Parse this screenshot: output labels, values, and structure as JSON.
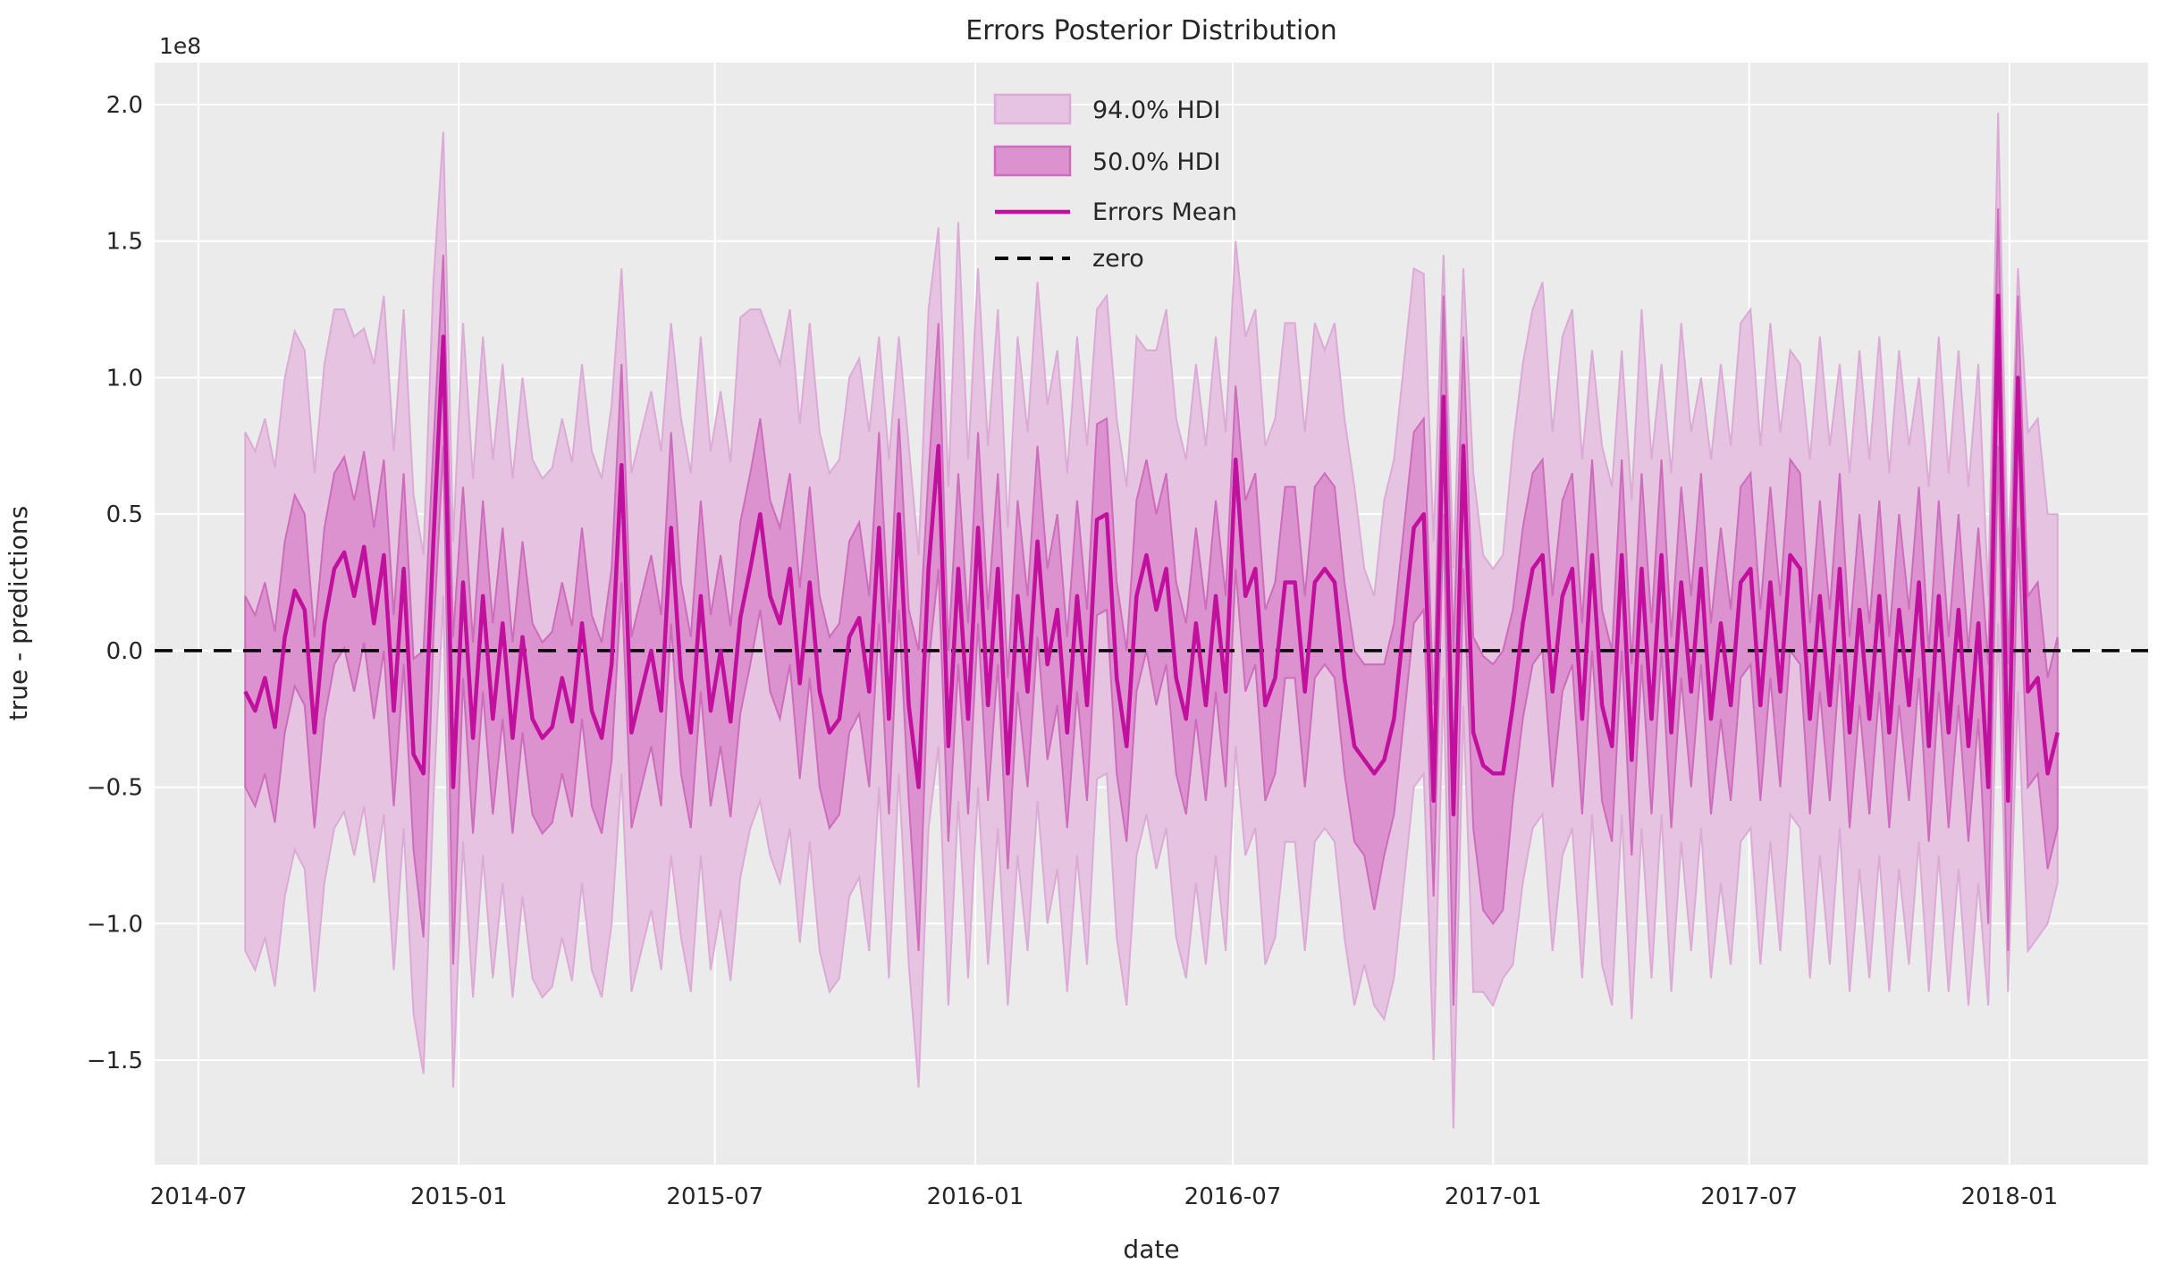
{
  "chart_data": {
    "type": "line",
    "title": "Errors Posterior Distribution",
    "xlabel": "date",
    "ylabel": "true - predictions",
    "y_offset_label": "1e8",
    "y_unit": "values are in units of 1e8",
    "ylim": [
      -1.883,
      2.154
    ],
    "grid": true,
    "legend_position": "upper center",
    "legend": {
      "hdi94_label": "94.0% HDI",
      "hdi50_label": "50.0% HDI",
      "mean_label": "Errors Mean",
      "zero_label": "zero"
    },
    "colors": {
      "hdi94_fill": "#e6c3e0",
      "hdi94_edge": "#dcaad6",
      "hdi50_fill": "#dc92cf",
      "hdi50_edge": "#cd6cbc",
      "mean_line": "#c0109d",
      "zero_line": "#000000",
      "axes_bg": "#ebebeb",
      "grid": "#ffffff",
      "text": "#262626"
    },
    "y_ticks": [
      2.0,
      1.5,
      1.0,
      0.5,
      0.0,
      -0.5,
      -1.0,
      -1.5
    ],
    "x_ticks": [
      {
        "label": "2014-07",
        "date": "2014-07-01"
      },
      {
        "label": "2015-01",
        "date": "2015-01-01"
      },
      {
        "label": "2015-07",
        "date": "2015-07-01"
      },
      {
        "label": "2016-01",
        "date": "2016-01-01"
      },
      {
        "label": "2016-07",
        "date": "2016-07-01"
      },
      {
        "label": "2017-01",
        "date": "2017-01-01"
      },
      {
        "label": "2017-07",
        "date": "2017-07-01"
      },
      {
        "label": "2018-01",
        "date": "2018-01-01"
      }
    ],
    "x_start": "2014-08-03",
    "x_step_days": 7,
    "x_margin_days": 64,
    "series": {
      "mean": [
        -0.15,
        -0.22,
        -0.1,
        -0.28,
        0.05,
        0.22,
        0.15,
        -0.3,
        0.1,
        0.3,
        0.36,
        0.2,
        0.38,
        0.1,
        0.35,
        -0.22,
        0.3,
        -0.38,
        -0.45,
        0.4,
        1.15,
        -0.5,
        0.25,
        -0.32,
        0.2,
        -0.25,
        0.1,
        -0.32,
        0.05,
        -0.25,
        -0.32,
        -0.28,
        -0.1,
        -0.26,
        0.1,
        -0.22,
        -0.32,
        -0.05,
        0.68,
        -0.3,
        -0.15,
        0.0,
        -0.22,
        0.45,
        -0.1,
        -0.3,
        0.2,
        -0.22,
        0.0,
        -0.26,
        0.12,
        0.3,
        0.5,
        0.2,
        0.1,
        0.3,
        -0.12,
        0.25,
        -0.15,
        -0.3,
        -0.25,
        0.05,
        0.12,
        -0.15,
        0.45,
        -0.25,
        0.5,
        -0.2,
        -0.5,
        0.3,
        0.75,
        -0.35,
        0.3,
        -0.25,
        0.45,
        -0.2,
        0.3,
        -0.45,
        0.2,
        -0.15,
        0.4,
        -0.05,
        0.15,
        -0.3,
        0.2,
        -0.2,
        0.48,
        0.5,
        -0.1,
        -0.35,
        0.2,
        0.35,
        0.15,
        0.3,
        -0.1,
        -0.25,
        0.1,
        -0.2,
        0.2,
        -0.15,
        0.7,
        0.2,
        0.3,
        -0.2,
        -0.1,
        0.25,
        0.25,
        -0.15,
        0.25,
        0.3,
        0.25,
        -0.1,
        -0.35,
        -0.4,
        -0.45,
        -0.4,
        -0.25,
        0.1,
        0.45,
        0.5,
        -0.55,
        0.93,
        -0.6,
        0.75,
        -0.3,
        -0.42,
        -0.45,
        -0.45,
        -0.2,
        0.1,
        0.3,
        0.35,
        -0.15,
        0.2,
        0.3,
        -0.25,
        0.35,
        -0.2,
        -0.35,
        0.35,
        -0.4,
        0.3,
        -0.25,
        0.35,
        -0.3,
        0.25,
        -0.15,
        0.3,
        -0.25,
        0.1,
        -0.2,
        0.25,
        0.3,
        -0.2,
        0.25,
        -0.15,
        0.35,
        0.3,
        -0.25,
        0.2,
        -0.2,
        0.3,
        -0.3,
        0.15,
        -0.25,
        0.2,
        -0.3,
        0.15,
        -0.2,
        0.25,
        -0.35,
        0.2,
        -0.3,
        0.15,
        -0.35,
        0.1,
        -0.5,
        1.3,
        -0.55,
        1.0,
        -0.15,
        -0.1,
        -0.45,
        -0.3
      ],
      "hdi50_lower": [
        -0.5,
        -0.57,
        -0.45,
        -0.63,
        -0.3,
        -0.13,
        -0.2,
        -0.65,
        -0.25,
        -0.05,
        0.01,
        -0.15,
        0.03,
        -0.25,
        0.0,
        -0.57,
        -0.05,
        -0.73,
        -1.05,
        0.05,
        0.75,
        -1.15,
        -0.1,
        -0.67,
        -0.15,
        -0.6,
        -0.25,
        -0.67,
        -0.3,
        -0.6,
        -0.67,
        -0.63,
        -0.45,
        -0.61,
        -0.25,
        -0.57,
        -0.67,
        -0.4,
        0.25,
        -0.65,
        -0.5,
        -0.35,
        -0.57,
        0.1,
        -0.45,
        -0.65,
        -0.15,
        -0.57,
        -0.35,
        -0.61,
        -0.23,
        -0.05,
        0.15,
        -0.15,
        -0.25,
        -0.05,
        -0.47,
        -0.1,
        -0.5,
        -0.65,
        -0.6,
        -0.3,
        -0.23,
        -0.5,
        0.1,
        -0.6,
        0.15,
        -0.55,
        -1.1,
        -0.05,
        0.3,
        -0.7,
        -0.05,
        -0.6,
        0.1,
        -0.55,
        -0.05,
        -0.8,
        -0.15,
        -0.5,
        0.05,
        -0.4,
        -0.2,
        -0.65,
        -0.15,
        -0.55,
        0.13,
        0.15,
        -0.45,
        -0.7,
        -0.15,
        0.0,
        -0.2,
        -0.05,
        -0.45,
        -0.6,
        -0.25,
        -0.55,
        -0.15,
        -0.5,
        0.3,
        -0.15,
        -0.05,
        -0.55,
        -0.45,
        -0.1,
        -0.1,
        -0.5,
        -0.1,
        -0.05,
        -0.1,
        -0.45,
        -0.7,
        -0.75,
        -0.95,
        -0.75,
        -0.6,
        -0.25,
        0.1,
        0.15,
        -0.9,
        0.5,
        -1.3,
        0.3,
        -0.65,
        -0.95,
        -1.0,
        -0.95,
        -0.55,
        -0.25,
        -0.05,
        0.0,
        -0.5,
        -0.15,
        -0.05,
        -0.6,
        0.0,
        -0.55,
        -0.7,
        0.0,
        -0.75,
        -0.05,
        -0.6,
        0.0,
        -0.65,
        -0.1,
        -0.5,
        -0.05,
        -0.6,
        -0.25,
        -0.55,
        -0.1,
        -0.05,
        -0.55,
        -0.1,
        -0.5,
        0.0,
        -0.05,
        -0.6,
        -0.15,
        -0.55,
        -0.05,
        -0.65,
        -0.2,
        -0.6,
        -0.15,
        -0.65,
        -0.2,
        -0.55,
        -0.1,
        -0.7,
        -0.15,
        -0.65,
        -0.2,
        -0.7,
        -0.25,
        -1.0,
        0.75,
        -1.1,
        0.45,
        -0.5,
        -0.45,
        -0.8,
        -0.65
      ],
      "hdi50_upper": [
        0.2,
        0.13,
        0.25,
        0.07,
        0.4,
        0.57,
        0.5,
        0.05,
        0.45,
        0.65,
        0.71,
        0.55,
        0.73,
        0.45,
        0.7,
        0.13,
        0.65,
        -0.03,
        0.0,
        0.75,
        1.45,
        0.05,
        0.6,
        0.03,
        0.55,
        0.1,
        0.45,
        0.03,
        0.4,
        0.1,
        0.03,
        0.07,
        0.25,
        0.09,
        0.45,
        0.13,
        0.03,
        0.3,
        1.05,
        0.05,
        0.2,
        0.35,
        0.13,
        0.8,
        0.25,
        0.05,
        0.55,
        0.13,
        0.35,
        0.09,
        0.47,
        0.65,
        0.85,
        0.55,
        0.45,
        0.65,
        0.23,
        0.6,
        0.2,
        0.05,
        0.1,
        0.4,
        0.47,
        0.2,
        0.8,
        0.1,
        0.85,
        0.15,
        0.0,
        0.65,
        1.2,
        0.0,
        0.65,
        0.1,
        0.8,
        0.15,
        0.65,
        -0.1,
        0.55,
        0.2,
        0.75,
        0.3,
        0.5,
        0.05,
        0.55,
        0.15,
        0.83,
        0.85,
        0.25,
        0.0,
        0.55,
        0.7,
        0.5,
        0.65,
        0.25,
        0.1,
        0.45,
        0.15,
        0.55,
        0.2,
        0.97,
        0.55,
        0.65,
        0.15,
        0.25,
        0.6,
        0.6,
        0.2,
        0.6,
        0.65,
        0.6,
        0.25,
        0.0,
        -0.05,
        -0.05,
        -0.05,
        0.1,
        0.45,
        0.8,
        0.85,
        -0.2,
        1.3,
        0.0,
        1.15,
        0.05,
        -0.02,
        -0.05,
        0.0,
        0.15,
        0.45,
        0.65,
        0.7,
        0.2,
        0.55,
        0.65,
        0.1,
        0.7,
        0.15,
        0.0,
        0.7,
        -0.05,
        0.65,
        0.1,
        0.7,
        0.05,
        0.6,
        0.2,
        0.65,
        0.1,
        0.45,
        0.15,
        0.6,
        0.65,
        0.15,
        0.6,
        0.2,
        0.7,
        0.65,
        0.1,
        0.55,
        0.15,
        0.65,
        0.05,
        0.5,
        0.1,
        0.55,
        0.05,
        0.5,
        0.15,
        0.6,
        0.0,
        0.55,
        0.05,
        0.5,
        0.0,
        0.45,
        -0.05,
        1.62,
        -0.05,
        1.3,
        0.2,
        0.25,
        -0.1,
        0.05
      ],
      "hdi94_lower": [
        -1.1,
        -1.17,
        -1.05,
        -1.23,
        -0.9,
        -0.73,
        -0.8,
        -1.25,
        -0.85,
        -0.65,
        -0.59,
        -0.75,
        -0.57,
        -0.85,
        -0.6,
        -1.17,
        -0.65,
        -1.33,
        -1.55,
        -0.55,
        0.2,
        -1.6,
        -0.7,
        -1.27,
        -0.75,
        -1.2,
        -0.85,
        -1.27,
        -0.9,
        -1.2,
        -1.27,
        -1.23,
        -1.05,
        -1.21,
        -0.85,
        -1.17,
        -1.27,
        -1.0,
        -0.45,
        -1.25,
        -1.1,
        -0.95,
        -1.17,
        -0.75,
        -1.05,
        -1.25,
        -0.75,
        -1.17,
        -0.95,
        -1.21,
        -0.83,
        -0.65,
        -0.55,
        -0.75,
        -0.85,
        -0.65,
        -1.07,
        -0.7,
        -1.1,
        -1.25,
        -1.2,
        -0.9,
        -0.83,
        -1.1,
        -0.5,
        -1.2,
        -0.45,
        -1.15,
        -1.6,
        -0.65,
        -0.35,
        -1.3,
        -0.55,
        -1.2,
        -0.5,
        -1.15,
        -0.65,
        -1.3,
        -0.75,
        -1.1,
        -0.55,
        -1.0,
        -0.8,
        -1.25,
        -0.75,
        -1.15,
        -0.47,
        -0.45,
        -1.05,
        -1.3,
        -0.75,
        -0.6,
        -0.8,
        -0.65,
        -1.05,
        -1.2,
        -0.85,
        -1.15,
        -0.75,
        -1.1,
        -0.35,
        -0.75,
        -0.65,
        -1.15,
        -1.05,
        -0.7,
        -0.7,
        -1.1,
        -0.7,
        -0.65,
        -0.7,
        -1.05,
        -1.3,
        -1.15,
        -1.3,
        -1.35,
        -1.2,
        -0.85,
        -0.5,
        -0.45,
        -1.5,
        -0.1,
        -1.75,
        -0.2,
        -1.25,
        -1.25,
        -1.3,
        -1.2,
        -1.15,
        -0.85,
        -0.65,
        -0.6,
        -1.1,
        -0.75,
        -0.65,
        -1.2,
        -0.6,
        -1.15,
        -1.3,
        -0.6,
        -1.35,
        -0.65,
        -1.2,
        -0.6,
        -1.25,
        -0.7,
        -1.1,
        -0.65,
        -1.2,
        -0.85,
        -1.15,
        -0.7,
        -0.65,
        -1.15,
        -0.7,
        -1.1,
        -0.6,
        -0.65,
        -1.2,
        -0.75,
        -1.15,
        -0.65,
        -1.25,
        -0.8,
        -1.2,
        -0.75,
        -1.25,
        -0.8,
        -1.15,
        -0.7,
        -1.25,
        -0.75,
        -1.25,
        -0.8,
        -1.3,
        -0.85,
        -1.3,
        0.1,
        -1.25,
        -0.15,
        -1.1,
        -1.05,
        -1.0,
        -0.85
      ],
      "hdi94_upper": [
        0.8,
        0.73,
        0.85,
        0.67,
        1.0,
        1.17,
        1.1,
        0.65,
        1.05,
        1.25,
        1.25,
        1.15,
        1.18,
        1.05,
        1.3,
        0.73,
        1.25,
        0.57,
        0.35,
        1.35,
        1.9,
        0.4,
        1.2,
        0.63,
        1.15,
        0.7,
        1.05,
        0.63,
        1.0,
        0.7,
        0.63,
        0.67,
        0.85,
        0.69,
        1.05,
        0.73,
        0.63,
        0.9,
        1.4,
        0.65,
        0.8,
        0.95,
        0.73,
        1.2,
        0.85,
        0.65,
        1.15,
        0.73,
        0.95,
        0.69,
        1.22,
        1.25,
        1.25,
        1.15,
        1.05,
        1.25,
        0.83,
        1.2,
        0.8,
        0.65,
        0.7,
        1.0,
        1.07,
        0.8,
        1.15,
        0.7,
        1.15,
        0.75,
        0.35,
        1.25,
        1.55,
        0.6,
        1.57,
        0.7,
        1.4,
        0.75,
        1.25,
        0.45,
        1.15,
        0.8,
        1.35,
        0.9,
        1.1,
        0.65,
        1.15,
        0.75,
        1.25,
        1.3,
        0.85,
        0.6,
        1.15,
        1.1,
        1.1,
        1.25,
        0.85,
        0.7,
        1.05,
        0.75,
        1.15,
        0.8,
        1.5,
        1.15,
        1.25,
        0.75,
        0.85,
        1.2,
        1.2,
        0.8,
        1.2,
        1.1,
        1.2,
        0.85,
        0.6,
        0.3,
        0.2,
        0.55,
        0.7,
        1.05,
        1.4,
        1.38,
        0.4,
        1.45,
        0.3,
        1.4,
        0.65,
        0.35,
        0.3,
        0.35,
        0.75,
        1.05,
        1.25,
        1.35,
        0.8,
        1.15,
        1.25,
        0.7,
        1.1,
        0.75,
        0.6,
        1.1,
        0.55,
        1.25,
        0.7,
        1.05,
        0.65,
        1.2,
        0.8,
        1.0,
        0.7,
        1.05,
        0.75,
        1.2,
        1.25,
        0.75,
        1.2,
        0.8,
        1.1,
        1.05,
        0.7,
        1.15,
        0.75,
        1.05,
        0.65,
        1.1,
        0.7,
        1.15,
        0.65,
        1.1,
        0.75,
        1.0,
        0.6,
        1.15,
        0.65,
        1.1,
        0.6,
        1.05,
        0.2,
        1.97,
        0.3,
        1.4,
        0.8,
        0.85,
        0.5,
        0.5
      ]
    }
  }
}
